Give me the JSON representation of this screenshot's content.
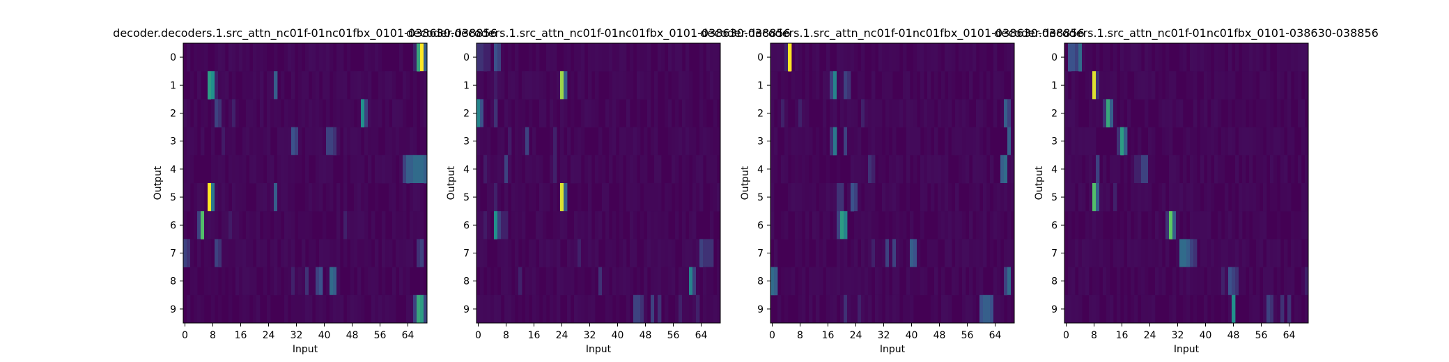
{
  "figure": {
    "background": "#ffffff"
  },
  "chart_data": [
    {
      "type": "heatmap",
      "title": "decoder.decoders.1.src_attn_nc01f-01nc01fbx_0101-038630-038856",
      "xlabel": "Input",
      "ylabel": "Output",
      "n_inputs": 70,
      "x_ticks": [
        0,
        8,
        16,
        24,
        32,
        40,
        48,
        56,
        64
      ],
      "y_ticks": [
        0,
        1,
        2,
        3,
        4,
        5,
        6,
        7,
        8,
        9
      ],
      "colormap": [
        "#440154",
        "#3b528b",
        "#21918c",
        "#5ec962",
        "#fde725"
      ],
      "rows": [
        [
          [
            68,
            1.0
          ],
          [
            67,
            0.6
          ],
          [
            69,
            0.3
          ],
          [
            66,
            0.1
          ]
        ],
        [
          [
            7,
            0.55
          ],
          [
            8,
            0.5
          ],
          [
            26,
            0.3
          ],
          [
            9,
            0.1
          ]
        ],
        [
          [
            51,
            0.5
          ],
          [
            52,
            0.2
          ],
          [
            9,
            0.2
          ],
          [
            10,
            0.15
          ],
          [
            14,
            0.1
          ]
        ],
        [
          [
            31,
            0.25
          ],
          [
            32,
            0.2
          ],
          [
            41,
            0.2
          ],
          [
            42,
            0.2
          ],
          [
            43,
            0.15
          ],
          [
            11,
            0.08
          ]
        ],
        [
          [
            64,
            0.3
          ],
          [
            65,
            0.3
          ],
          [
            66,
            0.35
          ],
          [
            67,
            0.35
          ],
          [
            68,
            0.35
          ],
          [
            69,
            0.3
          ],
          [
            63,
            0.2
          ]
        ],
        [
          [
            7,
            1.0
          ],
          [
            8,
            0.4
          ],
          [
            26,
            0.3
          ]
        ],
        [
          [
            5,
            0.7
          ],
          [
            4,
            0.2
          ],
          [
            46,
            0.1
          ],
          [
            13,
            0.08
          ]
        ],
        [
          [
            0,
            0.2
          ],
          [
            1,
            0.15
          ],
          [
            9,
            0.2
          ],
          [
            10,
            0.15
          ],
          [
            68,
            0.2
          ],
          [
            67,
            0.15
          ]
        ],
        [
          [
            42,
            0.35
          ],
          [
            43,
            0.3
          ],
          [
            39,
            0.25
          ],
          [
            38,
            0.2
          ],
          [
            35,
            0.15
          ],
          [
            31,
            0.1
          ]
        ],
        [
          [
            67,
            0.6
          ],
          [
            68,
            0.55
          ],
          [
            66,
            0.2
          ],
          [
            69,
            0.2
          ]
        ]
      ]
    },
    {
      "type": "heatmap",
      "title": "decoder.decoders.1.src_attn_nc01f-01nc01fbx_0101-038630-038856",
      "xlabel": "Input",
      "ylabel": "Output",
      "n_inputs": 70,
      "x_ticks": [
        0,
        8,
        16,
        24,
        32,
        40,
        48,
        56,
        64
      ],
      "y_ticks": [
        0,
        1,
        2,
        3,
        4,
        5,
        6,
        7,
        8,
        9
      ],
      "colormap": [
        "#440154",
        "#3b528b",
        "#21918c",
        "#5ec962",
        "#fde725"
      ],
      "rows": [
        [
          [
            0,
            0.15
          ],
          [
            1,
            0.15
          ],
          [
            5,
            0.25
          ],
          [
            6,
            0.2
          ],
          [
            2,
            0.1
          ],
          [
            3,
            0.1
          ]
        ],
        [
          [
            24,
            0.85
          ],
          [
            25,
            0.3
          ],
          [
            5,
            0.08
          ]
        ],
        [
          [
            0,
            0.45
          ],
          [
            1,
            0.25
          ],
          [
            5,
            0.15
          ]
        ],
        [
          [
            14,
            0.2
          ],
          [
            22,
            0.1
          ],
          [
            9,
            0.08
          ]
        ],
        [
          [
            8,
            0.2
          ],
          [
            22,
            0.1
          ],
          [
            2,
            0.08
          ]
        ],
        [
          [
            24,
            0.95
          ],
          [
            25,
            0.3
          ],
          [
            5,
            0.1
          ]
        ],
        [
          [
            5,
            0.5
          ],
          [
            6,
            0.2
          ],
          [
            7,
            0.1
          ],
          [
            8,
            0.1
          ],
          [
            2,
            0.08
          ]
        ],
        [
          [
            64,
            0.2
          ],
          [
            65,
            0.15
          ],
          [
            66,
            0.15
          ],
          [
            67,
            0.15
          ],
          [
            29,
            0.1
          ]
        ],
        [
          [
            61,
            0.45
          ],
          [
            62,
            0.2
          ],
          [
            35,
            0.15
          ],
          [
            12,
            0.1
          ]
        ],
        [
          [
            45,
            0.2
          ],
          [
            46,
            0.2
          ],
          [
            47,
            0.15
          ],
          [
            50,
            0.2
          ],
          [
            52,
            0.15
          ],
          [
            58,
            0.1
          ],
          [
            63,
            0.1
          ]
        ]
      ]
    },
    {
      "type": "heatmap",
      "title": "decoder.decoders.1.src_attn_nc01f-01nc01fbx_0101-038630-038856",
      "xlabel": "Input",
      "ylabel": "Output",
      "n_inputs": 70,
      "x_ticks": [
        0,
        8,
        16,
        24,
        32,
        40,
        48,
        56,
        64
      ],
      "y_ticks": [
        0,
        1,
        2,
        3,
        4,
        5,
        6,
        7,
        8,
        9
      ],
      "colormap": [
        "#440154",
        "#3b528b",
        "#21918c",
        "#5ec962",
        "#fde725"
      ],
      "rows": [
        [
          [
            5,
            1.0
          ],
          [
            4,
            0.1
          ]
        ],
        [
          [
            18,
            0.45
          ],
          [
            17,
            0.2
          ],
          [
            21,
            0.2
          ],
          [
            22,
            0.15
          ]
        ],
        [
          [
            67,
            0.3
          ],
          [
            68,
            0.2
          ],
          [
            3,
            0.1
          ],
          [
            8,
            0.1
          ],
          [
            26,
            0.1
          ]
        ],
        [
          [
            18,
            0.4
          ],
          [
            21,
            0.2
          ],
          [
            68,
            0.3
          ],
          [
            17,
            0.15
          ]
        ],
        [
          [
            66,
            0.3
          ],
          [
            67,
            0.35
          ],
          [
            28,
            0.15
          ],
          [
            29,
            0.1
          ]
        ],
        [
          [
            23,
            0.25
          ],
          [
            24,
            0.2
          ],
          [
            19,
            0.15
          ],
          [
            20,
            0.15
          ]
        ],
        [
          [
            20,
            0.55
          ],
          [
            21,
            0.45
          ],
          [
            19,
            0.2
          ]
        ],
        [
          [
            40,
            0.3
          ],
          [
            41,
            0.25
          ],
          [
            33,
            0.2
          ],
          [
            35,
            0.2
          ],
          [
            29,
            0.1
          ]
        ],
        [
          [
            0,
            0.35
          ],
          [
            1,
            0.3
          ],
          [
            68,
            0.35
          ],
          [
            67,
            0.2
          ]
        ],
        [
          [
            60,
            0.25
          ],
          [
            61,
            0.3
          ],
          [
            62,
            0.3
          ],
          [
            63,
            0.25
          ],
          [
            21,
            0.15
          ],
          [
            25,
            0.1
          ]
        ]
      ]
    },
    {
      "type": "heatmap",
      "title": "decoder.decoders.1.src_attn_nc01f-01nc01fbx_0101-038630-038856",
      "xlabel": "Input",
      "ylabel": "Output",
      "n_inputs": 70,
      "x_ticks": [
        0,
        8,
        16,
        24,
        32,
        40,
        48,
        56,
        64
      ],
      "y_ticks": [
        0,
        1,
        2,
        3,
        4,
        5,
        6,
        7,
        8,
        9
      ],
      "colormap": [
        "#440154",
        "#3b528b",
        "#21918c",
        "#5ec962",
        "#fde725"
      ],
      "rows": [
        [
          [
            4,
            0.35
          ],
          [
            1,
            0.25
          ],
          [
            2,
            0.25
          ],
          [
            3,
            0.2
          ]
        ],
        [
          [
            8,
            0.95
          ],
          [
            9,
            0.15
          ]
        ],
        [
          [
            12,
            0.6
          ],
          [
            13,
            0.3
          ],
          [
            11,
            0.15
          ]
        ],
        [
          [
            16,
            0.55
          ],
          [
            17,
            0.3
          ],
          [
            15,
            0.15
          ]
        ],
        [
          [
            22,
            0.2
          ],
          [
            23,
            0.2
          ],
          [
            9,
            0.2
          ],
          [
            20,
            0.1
          ],
          [
            21,
            0.1
          ]
        ],
        [
          [
            8,
            0.7
          ],
          [
            9,
            0.3
          ],
          [
            14,
            0.1
          ]
        ],
        [
          [
            30,
            0.75
          ],
          [
            31,
            0.3
          ],
          [
            29,
            0.15
          ]
        ],
        [
          [
            33,
            0.35
          ],
          [
            34,
            0.35
          ],
          [
            35,
            0.3
          ],
          [
            36,
            0.2
          ],
          [
            37,
            0.15
          ]
        ],
        [
          [
            47,
            0.25
          ],
          [
            48,
            0.2
          ],
          [
            49,
            0.15
          ],
          [
            45,
            0.1
          ],
          [
            69,
            0.1
          ]
        ],
        [
          [
            48,
            0.5
          ],
          [
            58,
            0.2
          ],
          [
            59,
            0.15
          ],
          [
            62,
            0.15
          ],
          [
            64,
            0.15
          ]
        ]
      ]
    }
  ]
}
